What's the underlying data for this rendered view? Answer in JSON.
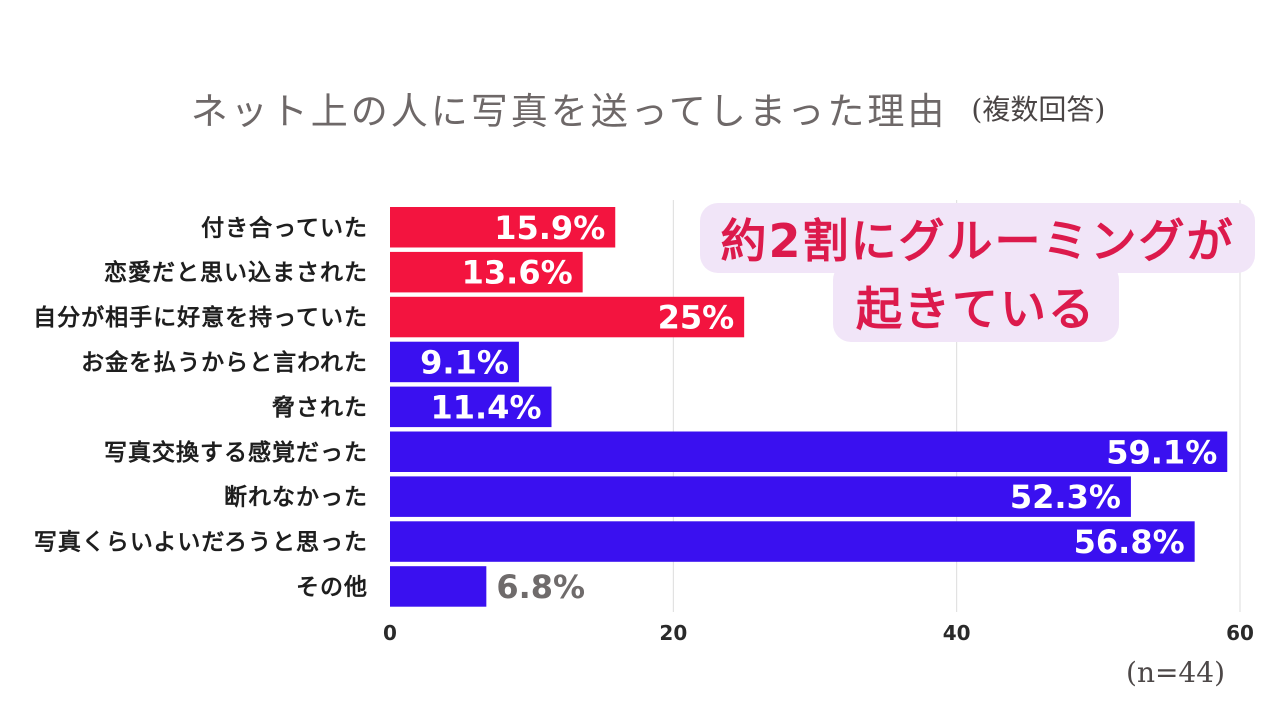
{
  "chart_data": {
    "type": "bar",
    "orientation": "horizontal",
    "title": "ネット上の人に写真を送ってしまった理由",
    "title_note": "(複数回答)",
    "categories": [
      "付き合っていた",
      "恋愛だと思い込まされた",
      "自分が相手に好意を持っていた",
      "お金を払うからと言われた",
      "脅された",
      "写真交換する感覚だった",
      "断れなかった",
      "写真くらいよいだろうと思った",
      "その他"
    ],
    "values": [
      15.9,
      13.6,
      25,
      9.1,
      11.4,
      59.1,
      52.3,
      56.8,
      6.8
    ],
    "value_labels": [
      "15.9%",
      "13.6%",
      "25%",
      "9.1%",
      "11.4%",
      "59.1%",
      "52.3%",
      "56.8%",
      "6.8%"
    ],
    "bar_colors": [
      "#f3143f",
      "#f3143f",
      "#f3143f",
      "#3a10f0",
      "#3a10f0",
      "#3a10f0",
      "#3a10f0",
      "#3a10f0",
      "#3a10f0"
    ],
    "xlim": [
      0,
      60
    ],
    "xticks": [
      0,
      20,
      40,
      60
    ],
    "xtick_labels": [
      "0",
      "20",
      "40",
      "60"
    ],
    "grid": true,
    "legend": false,
    "callout": {
      "lines": [
        "約2割にグルーミングが",
        "起きている"
      ]
    },
    "footnote": "(n=44)"
  },
  "colors": {
    "title": "#6e6868",
    "title_note": "#4a4545",
    "label_inside": "#ffffff",
    "label_outside": "#6f6b6b",
    "category_label": "#1e1e1e",
    "tick_label": "#2a2a2a",
    "callout_text": "#dc1a4c",
    "callout_background": "#f1e5f8",
    "gridline": "#dcdcdc"
  }
}
